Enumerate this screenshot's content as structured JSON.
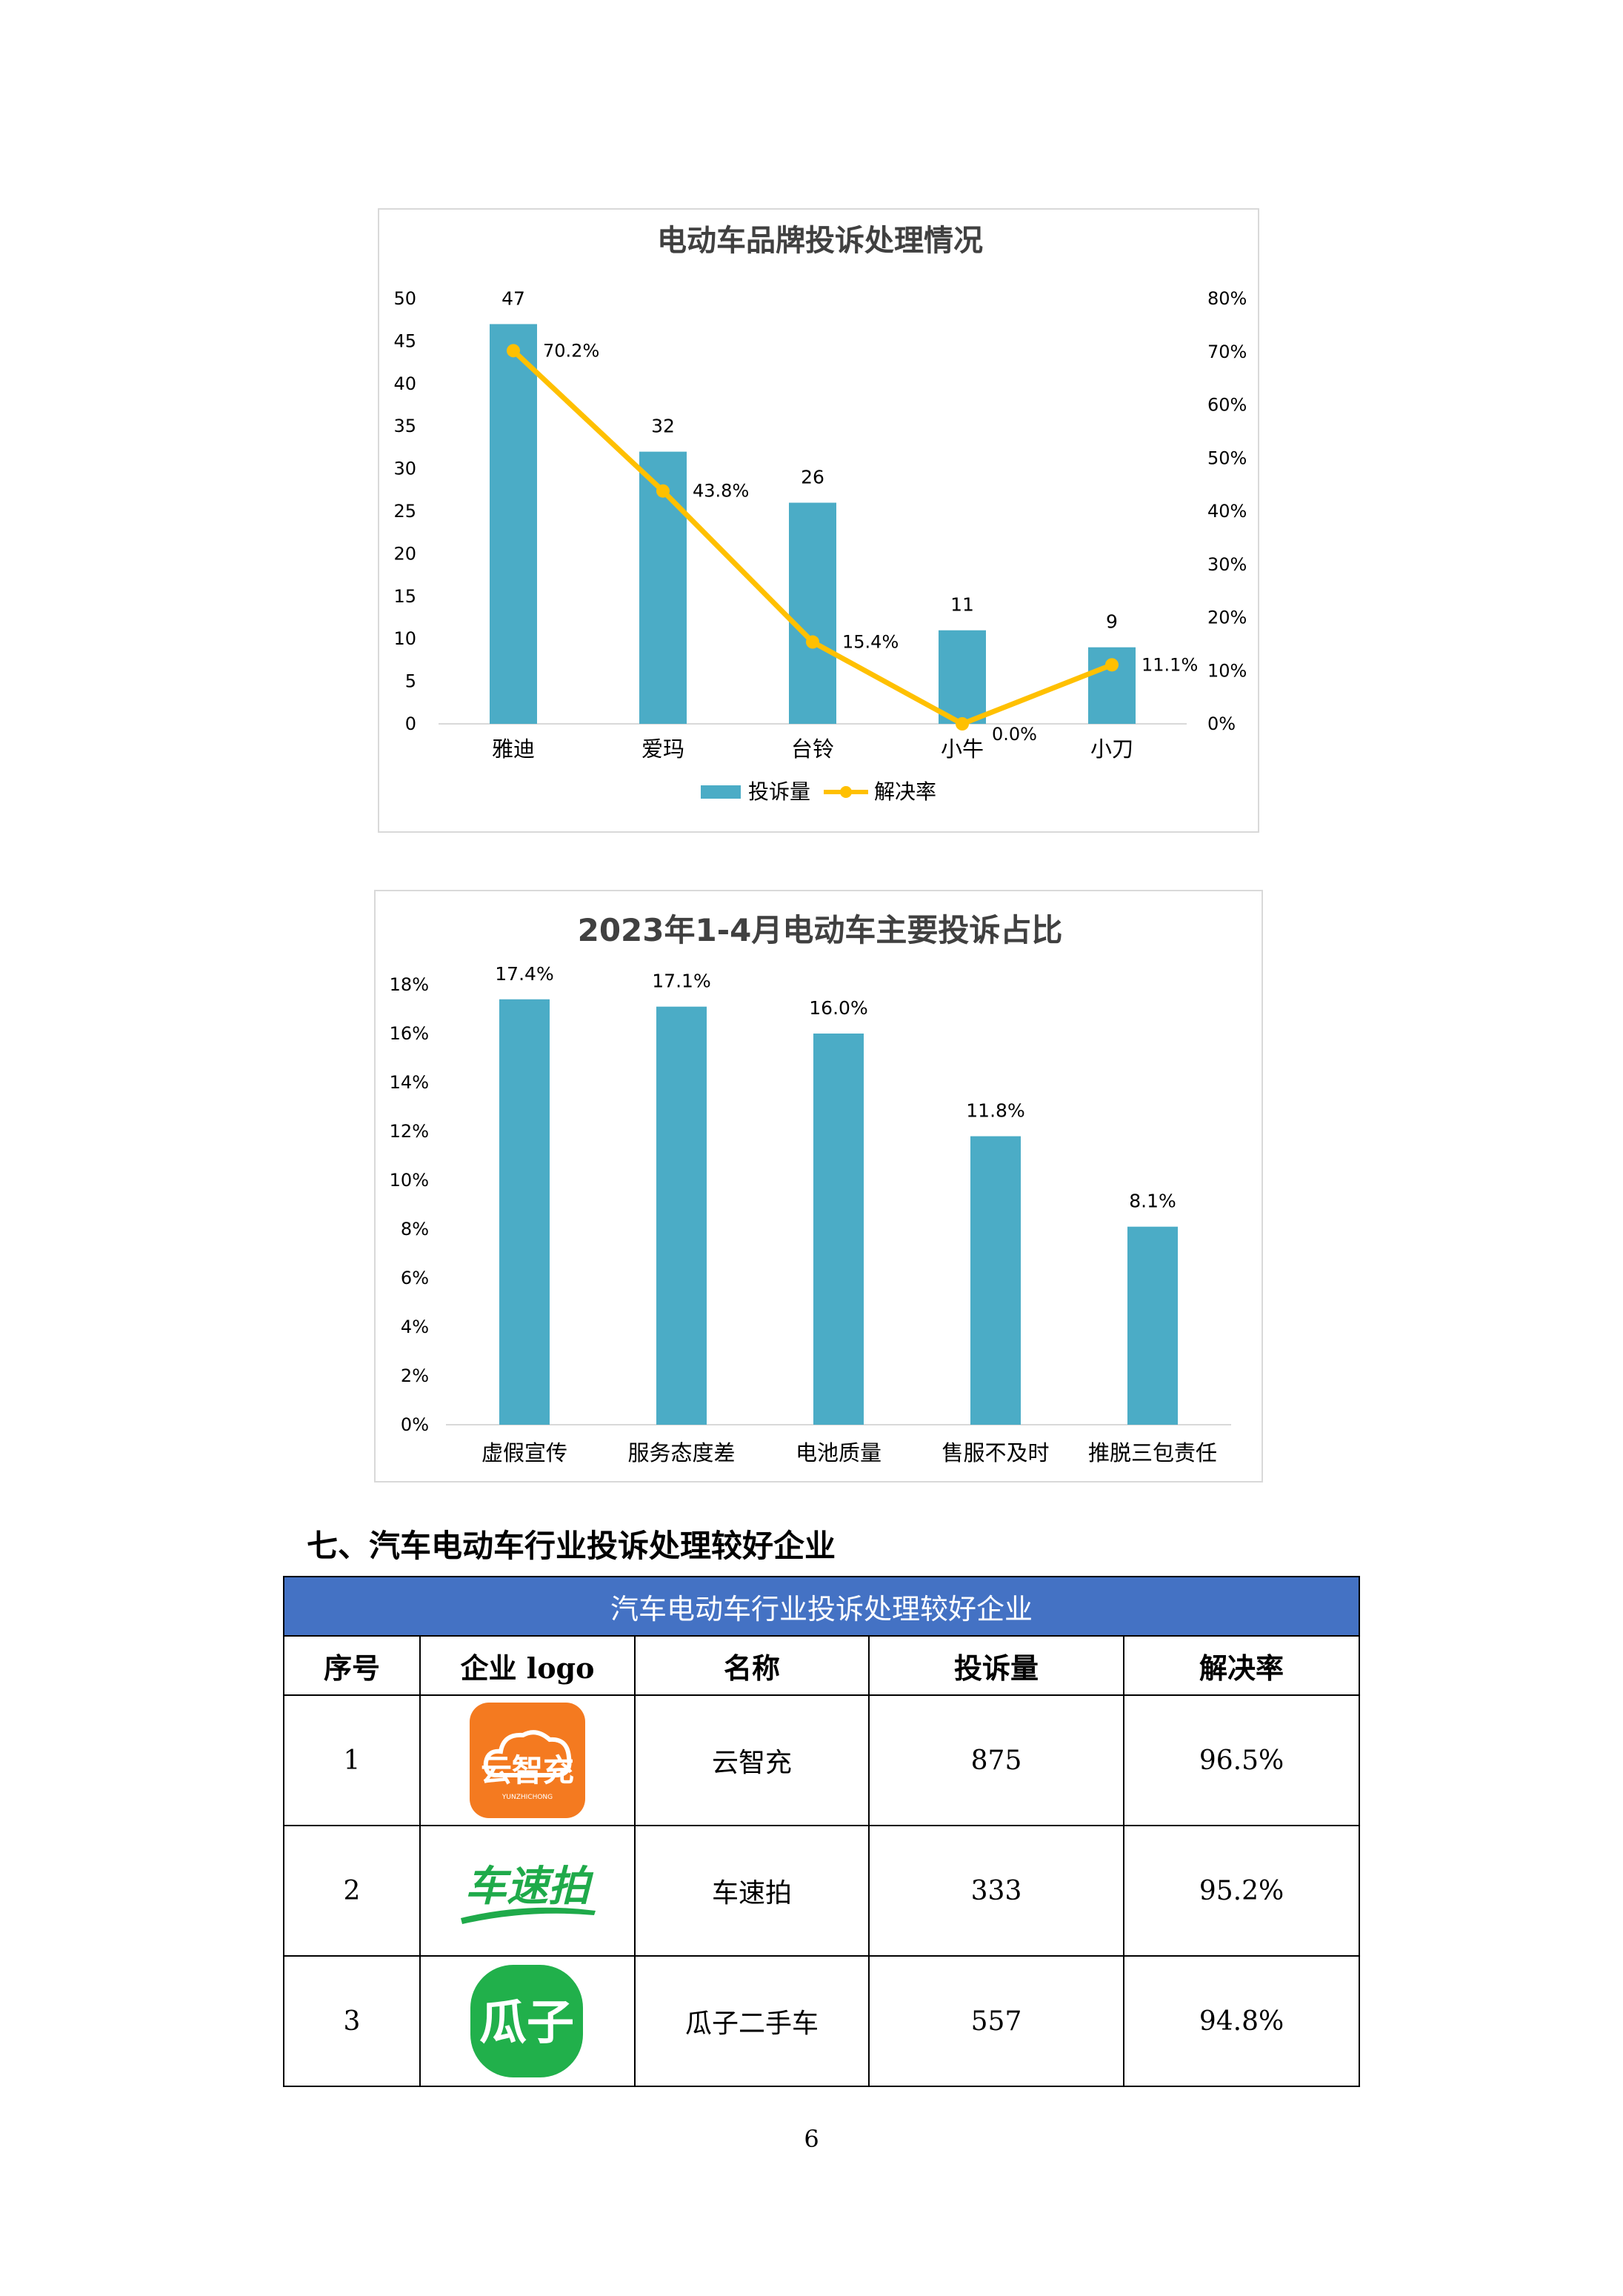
{
  "chart_data": [
    {
      "type": "bar+line",
      "title": "电动车品牌投诉处理情况",
      "categories": [
        "雅迪",
        "爱玛",
        "台铃",
        "小牛",
        "小刀"
      ],
      "series": [
        {
          "name": "投诉量",
          "type": "bar",
          "axis": "left",
          "values": [
            47,
            32,
            26,
            11,
            9
          ],
          "labels": [
            "47",
            "32",
            "26",
            "11",
            "9"
          ]
        },
        {
          "name": "解决率",
          "type": "line",
          "axis": "right",
          "values": [
            70.2,
            43.8,
            15.4,
            0.0,
            11.1
          ],
          "labels": [
            "70.2%",
            "43.8%",
            "15.4%",
            "0.0%",
            "11.1%"
          ]
        }
      ],
      "y_left": {
        "lim": [
          0,
          50
        ],
        "ticks": [
          "0",
          "5",
          "10",
          "15",
          "20",
          "25",
          "30",
          "35",
          "40",
          "45",
          "50"
        ]
      },
      "y_right": {
        "lim": [
          0,
          80
        ],
        "ticks": [
          "0%",
          "10%",
          "20%",
          "30%",
          "40%",
          "50%",
          "60%",
          "70%",
          "80%"
        ]
      },
      "grid": false,
      "legend": "bottom",
      "colors": {
        "bar": "#4bacc6",
        "line": "#ffc000"
      }
    },
    {
      "type": "bar",
      "title": "2023年1-4月电动车主要投诉占比",
      "categories": [
        "虚假宣传",
        "服务态度差",
        "电池质量",
        "售服不及时",
        "推脱三包责任"
      ],
      "values": [
        17.4,
        17.1,
        16.0,
        11.8,
        8.1
      ],
      "labels": [
        "17.4%",
        "17.1%",
        "16.0%",
        "11.8%",
        "8.1%"
      ],
      "ylim": [
        0,
        18
      ],
      "y_ticks": [
        "0%",
        "2%",
        "4%",
        "6%",
        "8%",
        "10%",
        "12%",
        "14%",
        "16%",
        "18%"
      ],
      "grid": false,
      "colors": {
        "bar": "#4bacc6"
      }
    }
  ],
  "section": {
    "heading": "七、汽车电动车行业投诉处理较好企业"
  },
  "table": {
    "title": "汽车电动车行业投诉处理较好企业",
    "headers": [
      "序号",
      "企业 logo",
      "名称",
      "投诉量",
      "解决率"
    ],
    "rows": [
      {
        "index": "1",
        "logo": {
          "icon": "yunzhichong-logo",
          "text": "云智充",
          "sub": "YUNZHICHONG",
          "color": "#f47a20"
        },
        "name": "云智充",
        "complaints": "875",
        "rate": "96.5%"
      },
      {
        "index": "2",
        "logo": {
          "icon": "chesupai-logo",
          "text": "车速拍",
          "color": "#1faa4a"
        },
        "name": "车速拍",
        "complaints": "333",
        "rate": "95.2%"
      },
      {
        "index": "3",
        "logo": {
          "icon": "guazi-logo",
          "text": "瓜子",
          "color": "#21b04b"
        },
        "name": "瓜子二手车",
        "complaints": "557",
        "rate": "94.8%"
      }
    ]
  },
  "page": {
    "number": "6"
  }
}
